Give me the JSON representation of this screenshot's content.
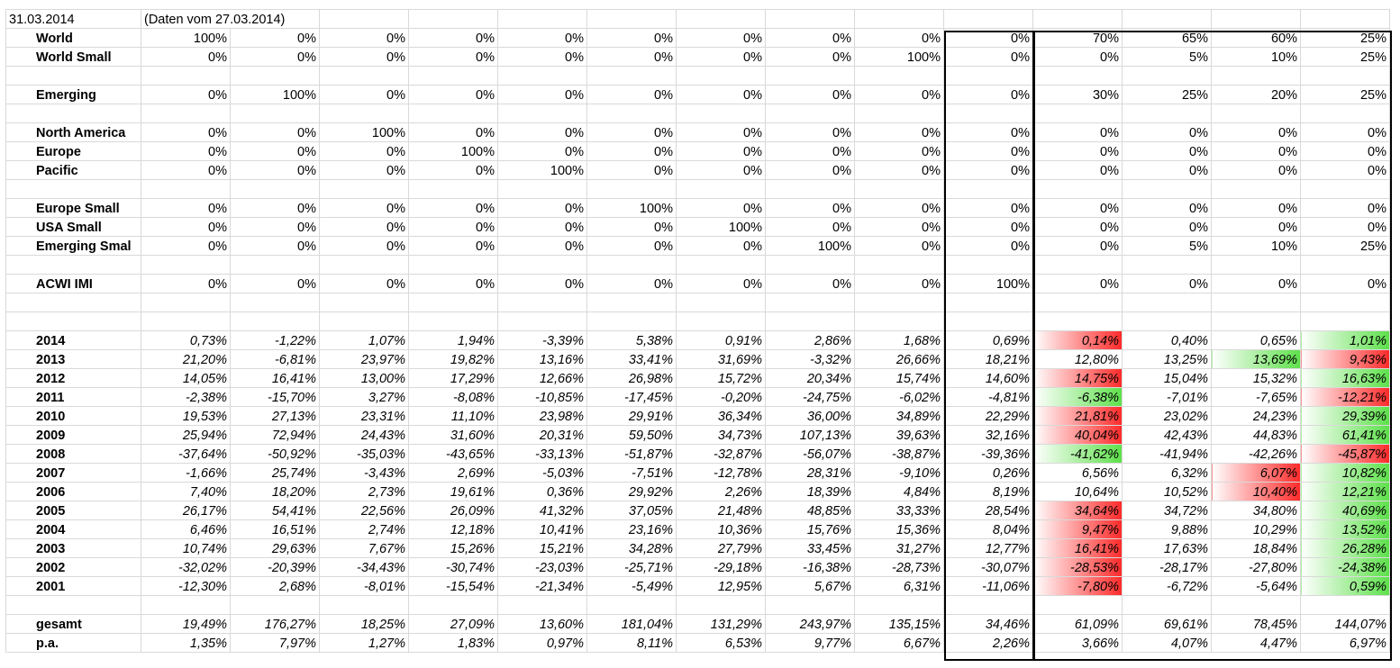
{
  "date": "31.03.2014",
  "note": "(Daten vom 27.03.2014)",
  "allocations": [
    {
      "label": "World",
      "values": [
        "100%",
        "0%",
        "0%",
        "0%",
        "0%",
        "0%",
        "0%",
        "0%",
        "0%",
        "0%",
        "70%",
        "65%",
        "60%",
        "25%"
      ]
    },
    {
      "label": "World Small",
      "values": [
        "0%",
        "0%",
        "0%",
        "0%",
        "0%",
        "0%",
        "0%",
        "0%",
        "100%",
        "0%",
        "0%",
        "5%",
        "10%",
        "25%"
      ]
    },
    {
      "label": "",
      "values": []
    },
    {
      "label": "Emerging",
      "values": [
        "0%",
        "100%",
        "0%",
        "0%",
        "0%",
        "0%",
        "0%",
        "0%",
        "0%",
        "0%",
        "30%",
        "25%",
        "20%",
        "25%"
      ]
    },
    {
      "label": "",
      "values": []
    },
    {
      "label": "North America",
      "values": [
        "0%",
        "0%",
        "100%",
        "0%",
        "0%",
        "0%",
        "0%",
        "0%",
        "0%",
        "0%",
        "0%",
        "0%",
        "0%",
        "0%"
      ]
    },
    {
      "label": "Europe",
      "values": [
        "0%",
        "0%",
        "0%",
        "100%",
        "0%",
        "0%",
        "0%",
        "0%",
        "0%",
        "0%",
        "0%",
        "0%",
        "0%",
        "0%"
      ]
    },
    {
      "label": "Pacific",
      "values": [
        "0%",
        "0%",
        "0%",
        "0%",
        "100%",
        "0%",
        "0%",
        "0%",
        "0%",
        "0%",
        "0%",
        "0%",
        "0%",
        "0%"
      ]
    },
    {
      "label": "",
      "values": []
    },
    {
      "label": "Europe Small",
      "values": [
        "0%",
        "0%",
        "0%",
        "0%",
        "0%",
        "100%",
        "0%",
        "0%",
        "0%",
        "0%",
        "0%",
        "0%",
        "0%",
        "0%"
      ]
    },
    {
      "label": "USA Small",
      "values": [
        "0%",
        "0%",
        "0%",
        "0%",
        "0%",
        "0%",
        "100%",
        "0%",
        "0%",
        "0%",
        "0%",
        "0%",
        "0%",
        "0%"
      ]
    },
    {
      "label": "Emerging Smal",
      "values": [
        "0%",
        "0%",
        "0%",
        "0%",
        "0%",
        "0%",
        "0%",
        "100%",
        "0%",
        "0%",
        "0%",
        "5%",
        "10%",
        "25%"
      ]
    },
    {
      "label": "",
      "values": []
    },
    {
      "label": "ACWI IMI",
      "values": [
        "0%",
        "0%",
        "0%",
        "0%",
        "0%",
        "0%",
        "0%",
        "0%",
        "0%",
        "100%",
        "0%",
        "0%",
        "0%",
        "0%"
      ]
    },
    {
      "label": "",
      "values": []
    },
    {
      "label": "",
      "values": []
    }
  ],
  "returns": [
    {
      "year": "2014",
      "values": [
        "0,73%",
        "-1,22%",
        "1,07%",
        "1,94%",
        "-3,39%",
        "5,38%",
        "0,91%",
        "2,86%",
        "1,68%",
        "0,69%",
        "0,14%",
        "0,40%",
        "0,65%",
        "1,01%"
      ]
    },
    {
      "year": "2013",
      "values": [
        "21,20%",
        "-6,81%",
        "23,97%",
        "19,82%",
        "13,16%",
        "33,41%",
        "31,69%",
        "-3,32%",
        "26,66%",
        "18,21%",
        "12,80%",
        "13,25%",
        "13,69%",
        "9,43%"
      ]
    },
    {
      "year": "2012",
      "values": [
        "14,05%",
        "16,41%",
        "13,00%",
        "17,29%",
        "12,66%",
        "26,98%",
        "15,72%",
        "20,34%",
        "15,74%",
        "14,60%",
        "14,75%",
        "15,04%",
        "15,32%",
        "16,63%"
      ]
    },
    {
      "year": "2011",
      "values": [
        "-2,38%",
        "-15,70%",
        "3,27%",
        "-8,08%",
        "-10,85%",
        "-17,45%",
        "-0,20%",
        "-24,75%",
        "-6,02%",
        "-4,81%",
        "-6,38%",
        "-7,01%",
        "-7,65%",
        "-12,21%"
      ]
    },
    {
      "year": "2010",
      "values": [
        "19,53%",
        "27,13%",
        "23,31%",
        "11,10%",
        "23,98%",
        "29,91%",
        "36,34%",
        "36,00%",
        "34,89%",
        "22,29%",
        "21,81%",
        "23,02%",
        "24,23%",
        "29,39%"
      ]
    },
    {
      "year": "2009",
      "values": [
        "25,94%",
        "72,94%",
        "24,43%",
        "31,60%",
        "20,31%",
        "59,50%",
        "34,73%",
        "107,13%",
        "39,63%",
        "32,16%",
        "40,04%",
        "42,43%",
        "44,83%",
        "61,41%"
      ]
    },
    {
      "year": "2008",
      "values": [
        "-37,64%",
        "-50,92%",
        "-35,03%",
        "-43,65%",
        "-33,13%",
        "-51,87%",
        "-32,87%",
        "-56,07%",
        "-38,87%",
        "-39,36%",
        "-41,62%",
        "-41,94%",
        "-42,26%",
        "-45,87%"
      ]
    },
    {
      "year": "2007",
      "values": [
        "-1,66%",
        "25,74%",
        "-3,43%",
        "2,69%",
        "-5,03%",
        "-7,51%",
        "-12,78%",
        "28,31%",
        "-9,10%",
        "0,26%",
        "6,56%",
        "6,32%",
        "6,07%",
        "10,82%"
      ]
    },
    {
      "year": "2006",
      "values": [
        "7,40%",
        "18,20%",
        "2,73%",
        "19,61%",
        "0,36%",
        "29,92%",
        "2,26%",
        "18,39%",
        "4,84%",
        "8,19%",
        "10,64%",
        "10,52%",
        "10,40%",
        "12,21%"
      ]
    },
    {
      "year": "2005",
      "values": [
        "26,17%",
        "54,41%",
        "22,56%",
        "26,09%",
        "41,32%",
        "37,05%",
        "21,48%",
        "48,85%",
        "33,33%",
        "28,54%",
        "34,64%",
        "34,72%",
        "34,80%",
        "40,69%"
      ]
    },
    {
      "year": "2004",
      "values": [
        "6,46%",
        "16,51%",
        "2,74%",
        "12,18%",
        "10,41%",
        "23,16%",
        "10,36%",
        "15,76%",
        "15,36%",
        "8,04%",
        "9,47%",
        "9,88%",
        "10,29%",
        "13,52%"
      ]
    },
    {
      "year": "2003",
      "values": [
        "10,74%",
        "29,63%",
        "7,67%",
        "15,26%",
        "15,21%",
        "34,28%",
        "27,79%",
        "33,45%",
        "31,27%",
        "12,77%",
        "16,41%",
        "17,63%",
        "18,84%",
        "26,28%"
      ]
    },
    {
      "year": "2002",
      "values": [
        "-32,02%",
        "-20,39%",
        "-34,43%",
        "-30,74%",
        "-23,03%",
        "-25,71%",
        "-29,18%",
        "-16,38%",
        "-28,73%",
        "-30,07%",
        "-28,53%",
        "-28,17%",
        "-27,80%",
        "-24,38%"
      ]
    },
    {
      "year": "2001",
      "values": [
        "-12,30%",
        "2,68%",
        "-8,01%",
        "-15,54%",
        "-21,34%",
        "-5,49%",
        "12,95%",
        "5,67%",
        "6,31%",
        "-11,06%",
        "-7,80%",
        "-6,72%",
        "-5,64%",
        "0,59%"
      ]
    }
  ],
  "summary": [
    {
      "label": "gesamt",
      "values": [
        "19,49%",
        "176,27%",
        "18,25%",
        "27,09%",
        "13,60%",
        "181,04%",
        "131,29%",
        "243,97%",
        "135,15%",
        "34,46%",
        "61,09%",
        "69,61%",
        "78,45%",
        "144,07%"
      ]
    },
    {
      "label": "p.a.",
      "values": [
        "1,35%",
        "7,97%",
        "1,27%",
        "1,83%",
        "0,97%",
        "8,11%",
        "6,53%",
        "9,77%",
        "6,67%",
        "2,26%",
        "3,66%",
        "4,07%",
        "4,47%",
        "6,97%"
      ]
    }
  ],
  "highlights": {
    "red": "#ff2a2a",
    "green": "#5de04a",
    "cells": {
      "2014": [
        "red",
        null,
        null,
        "green"
      ],
      "2013": [
        null,
        null,
        "green",
        "red"
      ],
      "2012": [
        "red",
        null,
        null,
        "green"
      ],
      "2011": [
        "green",
        null,
        null,
        "red"
      ],
      "2010": [
        "red",
        null,
        null,
        "green"
      ],
      "2009": [
        "red",
        null,
        null,
        "green"
      ],
      "2008": [
        "green",
        null,
        null,
        "red"
      ],
      "2007": [
        null,
        null,
        "red",
        "green"
      ],
      "2006": [
        null,
        null,
        "red",
        "green"
      ],
      "2005": [
        "red",
        null,
        null,
        "green"
      ],
      "2004": [
        "red",
        null,
        null,
        "green"
      ],
      "2003": [
        "red",
        null,
        null,
        "green"
      ],
      "2002": [
        "red",
        null,
        null,
        "green"
      ],
      "2001": [
        "red",
        null,
        null,
        "green"
      ]
    }
  }
}
